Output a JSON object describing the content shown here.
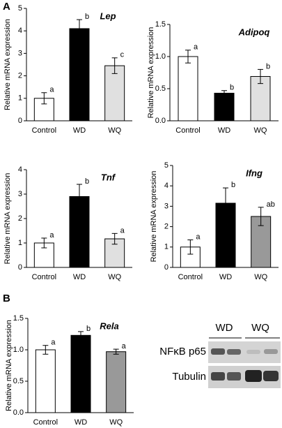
{
  "panel_labels": [
    "A",
    "B"
  ],
  "chart_data": [
    {
      "type": "bar",
      "title": "Lep",
      "ylabel": "Relative mRNA expression",
      "categories": [
        "Control",
        "WD",
        "WQ"
      ],
      "values": [
        1.0,
        4.1,
        2.45
      ],
      "errors": [
        0.25,
        0.4,
        0.35
      ],
      "annotations": [
        "a",
        "b",
        "c"
      ],
      "colors": [
        "#ffffff",
        "#000000",
        "#e0e0e0"
      ],
      "ylim": [
        0,
        5
      ],
      "yticks": [
        0,
        1,
        2,
        3,
        4,
        5
      ]
    },
    {
      "type": "bar",
      "title": "Adipoq",
      "ylabel": "Relative mRNA expression",
      "categories": [
        "Control",
        "WD",
        "WQ"
      ],
      "values": [
        1.0,
        0.43,
        0.69
      ],
      "errors": [
        0.1,
        0.04,
        0.11
      ],
      "annotations": [
        "a",
        "b",
        "b"
      ],
      "colors": [
        "#ffffff",
        "#000000",
        "#e0e0e0"
      ],
      "ylim": [
        0,
        1.5
      ],
      "yticks": [
        {
          "value": 0,
          "label": "0.0"
        },
        {
          "value": 0.5,
          "label": "0.5"
        },
        {
          "value": 1,
          "label": "1.0"
        },
        {
          "value": 1.5,
          "label": "1.5"
        }
      ]
    },
    {
      "type": "bar",
      "title": "Tnf",
      "ylabel": "Relative mRNA expression",
      "categories": [
        "Control",
        "WD",
        "WQ"
      ],
      "values": [
        1.0,
        2.9,
        1.17
      ],
      "errors": [
        0.2,
        0.5,
        0.22
      ],
      "annotations": [
        "a",
        "b",
        "a"
      ],
      "colors": [
        "#ffffff",
        "#000000",
        "#e0e0e0"
      ],
      "ylim": [
        0,
        4
      ],
      "yticks": [
        0,
        1,
        2,
        3,
        4
      ]
    },
    {
      "type": "bar",
      "title": "Ifng",
      "ylabel": "Relative mRNA expression",
      "categories": [
        "Control",
        "WD",
        "WQ"
      ],
      "values": [
        1.0,
        3.15,
        2.5
      ],
      "errors": [
        0.35,
        0.75,
        0.45
      ],
      "annotations": [
        "a",
        "b",
        "ab"
      ],
      "colors": [
        "#ffffff",
        "#000000",
        "#999999"
      ],
      "ylim": [
        0,
        5
      ],
      "yticks": [
        0,
        1,
        2,
        3,
        4,
        5
      ]
    },
    {
      "type": "bar",
      "title": "Rela",
      "ylabel": "Relative mRNA expression",
      "categories": [
        "Control",
        "WD",
        "WQ"
      ],
      "values": [
        1.0,
        1.23,
        0.97
      ],
      "errors": [
        0.07,
        0.06,
        0.04
      ],
      "annotations": [
        "a",
        "b",
        "a"
      ],
      "colors": [
        "#ffffff",
        "#000000",
        "#999999"
      ],
      "ylim": [
        0,
        1.5
      ],
      "yticks": [
        {
          "value": 0,
          "label": "0.0"
        },
        {
          "value": 0.5,
          "label": "0.5"
        },
        {
          "value": 1,
          "label": "1.0"
        },
        {
          "value": 1.5,
          "label": "1.5"
        }
      ]
    }
  ],
  "blot": {
    "groups": [
      "WD",
      "WQ"
    ],
    "rows": [
      "NFκB p65",
      "Tubulin"
    ]
  }
}
